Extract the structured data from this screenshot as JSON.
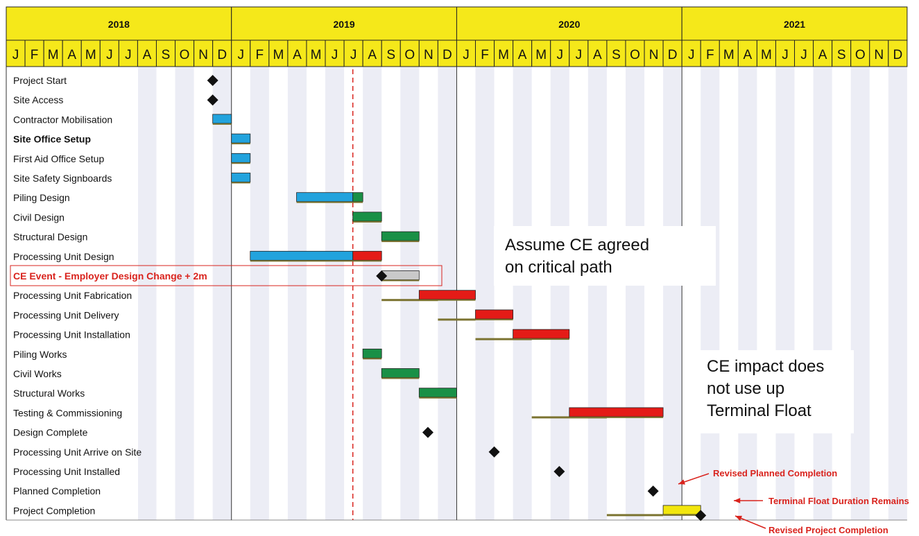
{
  "chart_data": {
    "type": "gantt",
    "x_axis": {
      "start": "2018-01",
      "end": "2021-12",
      "years": [
        "2018",
        "2019",
        "2020",
        "2021"
      ],
      "month_letters": [
        "J",
        "F",
        "M",
        "A",
        "M",
        "J",
        "J",
        "A",
        "S",
        "O",
        "N",
        "D"
      ]
    },
    "status_line": "2019-07-15",
    "colors": {
      "header": "#f5e81a",
      "completed": "#22a3dd",
      "non_critical": "#199046",
      "critical": "#e41b17",
      "ce_event": "#c9c9c9",
      "float": "#f2e60e",
      "baseline": "#7b7330",
      "milestone": "#111111",
      "annotation": "#d9231d",
      "stripe": "#ecedf5"
    },
    "tasks": [
      {
        "name": "Project Start",
        "type": "milestone",
        "date": "2018-12-01"
      },
      {
        "name": "Site Access",
        "type": "milestone",
        "date": "2018-12-01"
      },
      {
        "name": "Contractor Mobilisation",
        "segments": [
          {
            "start": "2018-12-01",
            "end": "2019-01-01",
            "color": "completed"
          }
        ]
      },
      {
        "name": "Site Office Setup",
        "bold": true,
        "segments": [
          {
            "start": "2019-01-01",
            "end": "2019-02-01",
            "color": "completed"
          }
        ]
      },
      {
        "name": "First Aid Office Setup",
        "segments": [
          {
            "start": "2019-01-01",
            "end": "2019-02-01",
            "color": "completed"
          }
        ]
      },
      {
        "name": "Site Safety Signboards",
        "segments": [
          {
            "start": "2019-01-01",
            "end": "2019-02-01",
            "color": "completed"
          }
        ]
      },
      {
        "name": "Piling Design",
        "segments": [
          {
            "start": "2019-04-15",
            "end": "2019-07-15",
            "color": "completed"
          },
          {
            "start": "2019-07-15",
            "end": "2019-08-01",
            "color": "non_critical"
          }
        ]
      },
      {
        "name": "Civil Design",
        "segments": [
          {
            "start": "2019-07-15",
            "end": "2019-09-01",
            "color": "non_critical"
          }
        ]
      },
      {
        "name": "Structural Design",
        "segments": [
          {
            "start": "2019-09-01",
            "end": "2019-11-01",
            "color": "non_critical"
          }
        ]
      },
      {
        "name": "Processing Unit Design",
        "segments": [
          {
            "start": "2019-02-01",
            "end": "2019-07-15",
            "color": "completed"
          },
          {
            "start": "2019-07-15",
            "end": "2019-09-01",
            "color": "critical"
          }
        ]
      },
      {
        "name": "CE Event - Employer Design Change + 2m",
        "highlight": true,
        "milestone": "2019-09-01",
        "segments": [
          {
            "start": "2019-09-01",
            "end": "2019-11-01",
            "color": "ce_event"
          }
        ]
      },
      {
        "name": "Processing Unit Fabrication",
        "baseline": {
          "start": "2019-09-01",
          "end": "2019-12-01"
        },
        "segments": [
          {
            "start": "2019-11-01",
            "end": "2020-02-01",
            "color": "critical"
          }
        ]
      },
      {
        "name": "Processing Unit Delivery",
        "baseline": {
          "start": "2019-12-01",
          "end": "2020-02-01"
        },
        "segments": [
          {
            "start": "2020-02-01",
            "end": "2020-04-01",
            "color": "critical"
          }
        ]
      },
      {
        "name": "Processing Unit Installation",
        "baseline": {
          "start": "2020-02-01",
          "end": "2020-05-01"
        },
        "segments": [
          {
            "start": "2020-04-01",
            "end": "2020-07-01",
            "color": "critical"
          }
        ]
      },
      {
        "name": "Piling Works",
        "segments": [
          {
            "start": "2019-08-01",
            "end": "2019-09-01",
            "color": "non_critical"
          }
        ]
      },
      {
        "name": "Civil Works",
        "segments": [
          {
            "start": "2019-09-01",
            "end": "2019-11-01",
            "color": "non_critical"
          }
        ]
      },
      {
        "name": "Structural Works",
        "segments": [
          {
            "start": "2019-11-01",
            "end": "2020-01-01",
            "color": "non_critical"
          }
        ]
      },
      {
        "name": "Testing & Commissioning",
        "baseline": {
          "start": "2020-05-01",
          "end": "2020-09-01"
        },
        "segments": [
          {
            "start": "2020-07-01",
            "end": "2020-12-01",
            "color": "critical"
          }
        ]
      },
      {
        "name": "Design Complete",
        "type": "milestone",
        "date": "2019-11-15"
      },
      {
        "name": "Processing Unit Arrive on Site",
        "type": "milestone",
        "date": "2020-03-01"
      },
      {
        "name": "Processing Unit Installed",
        "type": "milestone",
        "date": "2020-06-15"
      },
      {
        "name": "Planned Completion",
        "type": "milestone",
        "date": "2020-11-15"
      },
      {
        "name": "Project Completion",
        "milestone": "2021-02-01",
        "baseline": {
          "start": "2020-09-01",
          "end": "2020-12-01"
        },
        "segments": [
          {
            "start": "2020-12-01",
            "end": "2021-02-01",
            "color": "float"
          }
        ]
      }
    ],
    "annotations": [
      {
        "text": "Revised Planned Completion",
        "row": 21
      },
      {
        "text": "Terminal Float Duration Remains",
        "row": 22
      },
      {
        "text": "Revised Project Completion",
        "row": 23
      }
    ]
  },
  "callouts": {
    "ce_agreed": [
      "Assume CE agreed",
      "on critical path"
    ],
    "ce_impact": [
      "CE impact does",
      "not use up",
      "Terminal Float"
    ]
  }
}
